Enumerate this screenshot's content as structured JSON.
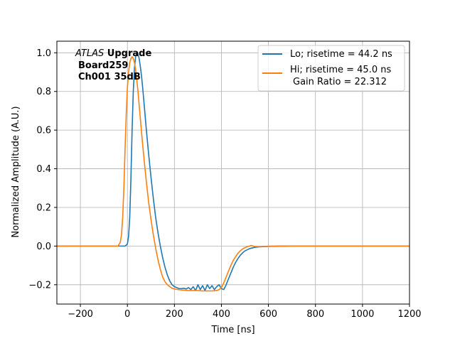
{
  "chart_data": {
    "type": "line",
    "xlabel": "Time [ns]",
    "ylabel": "Normalized Amplitude (A.U.)",
    "xlim": [
      -300,
      1200
    ],
    "ylim": [
      -0.3,
      1.06
    ],
    "xticks": [
      -200,
      0,
      200,
      400,
      600,
      800,
      1000,
      1200
    ],
    "yticks": [
      -0.2,
      0.0,
      0.2,
      0.4,
      0.6,
      0.8,
      1.0
    ],
    "xtick_labels": [
      "−200",
      "0",
      "200",
      "400",
      "600",
      "800",
      "1000",
      "1200"
    ],
    "ytick_labels": [
      "−0.2",
      "0.0",
      "0.2",
      "0.4",
      "0.6",
      "0.8",
      "1.0"
    ],
    "grid": true,
    "legend_position": "top-right",
    "annotation": {
      "line1_italic": "ATLAS",
      "line1_bold": " Upgrade",
      "line2": "Board259",
      "line3": "Ch001 35dB"
    },
    "series": [
      {
        "name": "Lo; risetime = 44.2 ns",
        "color": "#1f77b4",
        "x": [
          -300,
          -10,
          0,
          5,
          10,
          15,
          20,
          25,
          30,
          35,
          40,
          45,
          50,
          55,
          60,
          65,
          70,
          75,
          80,
          90,
          100,
          110,
          120,
          130,
          140,
          150,
          160,
          170,
          180,
          190,
          200,
          210,
          220,
          230,
          240,
          250,
          260,
          270,
          280,
          290,
          300,
          310,
          320,
          330,
          340,
          350,
          360,
          370,
          380,
          390,
          400,
          410,
          420,
          430,
          440,
          450,
          460,
          470,
          480,
          490,
          500,
          520,
          540,
          560,
          580,
          600,
          650,
          700,
          800,
          1000,
          1200
        ],
        "y": [
          0.0,
          0.0,
          0.01,
          0.05,
          0.15,
          0.35,
          0.6,
          0.8,
          0.92,
          0.98,
          1.0,
          0.995,
          0.97,
          0.93,
          0.88,
          0.82,
          0.75,
          0.68,
          0.61,
          0.48,
          0.36,
          0.25,
          0.15,
          0.07,
          0.0,
          -0.06,
          -0.11,
          -0.15,
          -0.18,
          -0.2,
          -0.21,
          -0.215,
          -0.22,
          -0.22,
          -0.218,
          -0.222,
          -0.215,
          -0.225,
          -0.21,
          -0.23,
          -0.2,
          -0.225,
          -0.205,
          -0.23,
          -0.2,
          -0.22,
          -0.205,
          -0.225,
          -0.21,
          -0.2,
          -0.22,
          -0.225,
          -0.2,
          -0.17,
          -0.14,
          -0.11,
          -0.085,
          -0.065,
          -0.048,
          -0.035,
          -0.025,
          -0.013,
          -0.007,
          -0.004,
          -0.002,
          -0.001,
          0.0,
          0.0,
          0.0,
          0.0,
          0.0
        ]
      },
      {
        "name": "Hi; risetime = 45.0 ns",
        "name_line2": "Gain Ratio = 22.312",
        "color": "#ff7f0e",
        "x": [
          -300,
          -40,
          -30,
          -25,
          -20,
          -15,
          -10,
          -5,
          0,
          5,
          10,
          15,
          20,
          25,
          30,
          35,
          40,
          45,
          50,
          55,
          60,
          70,
          80,
          90,
          100,
          110,
          120,
          130,
          140,
          150,
          160,
          170,
          180,
          190,
          200,
          220,
          240,
          260,
          280,
          300,
          320,
          340,
          360,
          380,
          390,
          400,
          410,
          420,
          430,
          440,
          450,
          460,
          470,
          480,
          490,
          500,
          510,
          520,
          525,
          530,
          540,
          560,
          580,
          600,
          650,
          700,
          800,
          1000,
          1200
        ],
        "y": [
          0.0,
          0.0,
          0.02,
          0.06,
          0.15,
          0.3,
          0.5,
          0.68,
          0.82,
          0.9,
          0.95,
          0.97,
          0.98,
          0.97,
          0.95,
          0.91,
          0.86,
          0.8,
          0.73,
          0.66,
          0.59,
          0.46,
          0.34,
          0.23,
          0.14,
          0.06,
          -0.01,
          -0.07,
          -0.12,
          -0.16,
          -0.185,
          -0.2,
          -0.21,
          -0.218,
          -0.222,
          -0.226,
          -0.228,
          -0.23,
          -0.23,
          -0.23,
          -0.232,
          -0.232,
          -0.232,
          -0.23,
          -0.225,
          -0.215,
          -0.19,
          -0.16,
          -0.13,
          -0.1,
          -0.075,
          -0.055,
          -0.038,
          -0.025,
          -0.015,
          -0.008,
          -0.003,
          0.0,
          0.003,
          0.002,
          -0.002,
          -0.004,
          -0.003,
          -0.002,
          -0.001,
          0.0,
          0.0,
          0.0,
          0.0
        ]
      }
    ]
  }
}
